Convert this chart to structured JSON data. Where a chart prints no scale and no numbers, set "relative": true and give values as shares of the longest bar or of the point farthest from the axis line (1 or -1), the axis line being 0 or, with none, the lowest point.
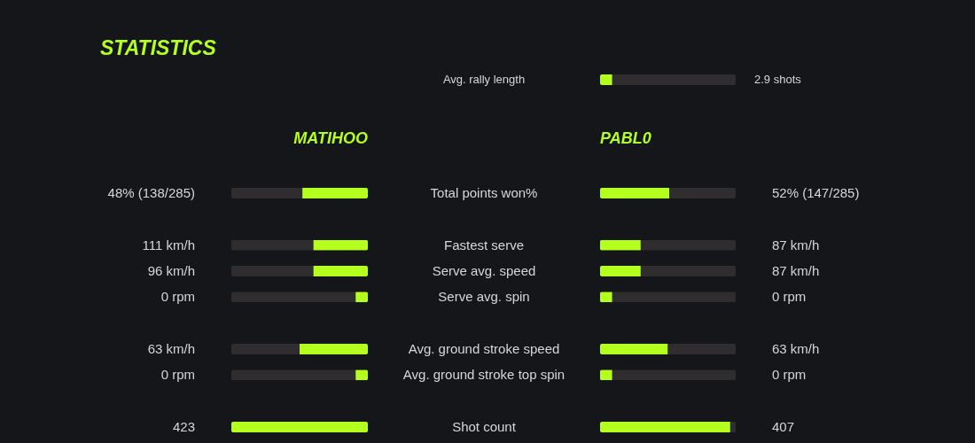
{
  "chart_data": [
    {
      "type": "bar",
      "orientation": "horizontal",
      "relative": true,
      "stacked": true,
      "tick_labels": "y",
      "categories": [
        "Avg. rally length"
      ],
      "series": [
        {
          "color": "#b4ff1e",
          "values": [
            0.09
          ]
        },
        {
          "color": "#2f2d2d",
          "values": [
            0.91
          ]
        }
      ],
      "annotations": [
        "2.9 shots"
      ]
    },
    {
      "type": "bar",
      "orientation": "horizontal",
      "relative": true,
      "stacked": true,
      "tick_labels": "y",
      "title": "STATISTICS",
      "categories": [
        "48% (138/285)",
        null,
        "111 km/h",
        "96 km/h",
        "0 rpm",
        null,
        "63 km/h",
        "0 rpm",
        null,
        "423"
      ],
      "series": [
        {
          "name": "MATIHOO",
          "color": "#b4ff1e",
          "values": [
            -0.48,
            null,
            -0.4,
            -0.4,
            -0.09,
            null,
            -0.5,
            -0.09,
            null,
            -1.0
          ]
        },
        {
          "color": "#2f2d2d",
          "values": [
            -0.52,
            null,
            -0.6,
            -0.6,
            -0.91,
            null,
            -0.5,
            -0.91,
            null,
            null
          ]
        }
      ]
    },
    {
      "type": "bar",
      "orientation": "horizontal",
      "relative": true,
      "stacked": true,
      "tick_labels": "y",
      "categories": [
        "Total points won%",
        null,
        "Fastest serve",
        "Serve avg. speed",
        "Serve avg. spin",
        null,
        "Avg. ground stroke speed",
        "Avg. ground stroke top spin",
        null,
        "Shot count"
      ],
      "series": [
        {
          "name": "PABL0",
          "color": "#b4ff1e",
          "values": [
            0.51,
            null,
            0.3,
            0.3,
            0.09,
            null,
            0.5,
            0.09,
            null,
            0.96
          ]
        },
        {
          "color": "#2f2d2d",
          "values": [
            0.49,
            null,
            0.7,
            0.7,
            0.91,
            null,
            0.5,
            0.91,
            null,
            0.04
          ]
        }
      ],
      "annotations": [
        "52% (147/285)",
        "87 km/h",
        "87 km/h",
        "0 rpm",
        "63 km/h",
        "0 rpm",
        "407"
      ]
    }
  ]
}
